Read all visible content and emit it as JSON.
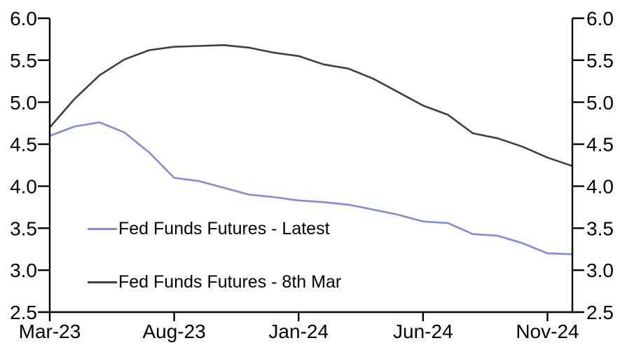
{
  "chart_data": {
    "type": "line",
    "title": "",
    "categories": [
      "Mar-23",
      "Apr-23",
      "May-23",
      "Jun-23",
      "Jul-23",
      "Aug-23",
      "Sep-23",
      "Oct-23",
      "Nov-23",
      "Dec-23",
      "Jan-24",
      "Feb-24",
      "Mar-24",
      "Apr-24",
      "May-24",
      "Jun-24",
      "Jul-24",
      "Aug-24",
      "Sep-24",
      "Oct-24",
      "Nov-24",
      "Dec-24"
    ],
    "x_tick_labels": [
      "Mar-23",
      "Aug-23",
      "Jan-24",
      "Jun-24",
      "Nov-24"
    ],
    "x_tick_indices": [
      0,
      5,
      10,
      15,
      20
    ],
    "series": [
      {
        "name": "Fed Funds Futures - Latest",
        "color": "#8585ec",
        "values": [
          4.6,
          4.71,
          4.76,
          4.64,
          4.4,
          4.1,
          4.06,
          3.98,
          3.9,
          3.87,
          3.83,
          3.81,
          3.78,
          3.72,
          3.66,
          3.58,
          3.56,
          3.43,
          3.41,
          3.32,
          3.2,
          3.19
        ]
      },
      {
        "name": "Fed Funds Futures - 8th Mar",
        "color": "#3f3f3f",
        "values": [
          4.7,
          5.04,
          5.32,
          5.51,
          5.62,
          5.66,
          5.67,
          5.68,
          5.65,
          5.59,
          5.55,
          5.45,
          5.4,
          5.28,
          5.12,
          4.96,
          4.85,
          4.63,
          4.57,
          4.47,
          4.34,
          4.24
        ]
      }
    ],
    "ylim": [
      2.5,
      6.0
    ],
    "yticks": [
      2.5,
      3.0,
      3.5,
      4.0,
      4.5,
      5.0,
      5.5,
      6.0
    ],
    "y_axis_sides": [
      "left",
      "right"
    ],
    "grid": false,
    "legend_position": "inside-lower-left"
  },
  "colors": {
    "axis": "#000000",
    "tick_text": "#000000",
    "background": "#ffffff"
  }
}
